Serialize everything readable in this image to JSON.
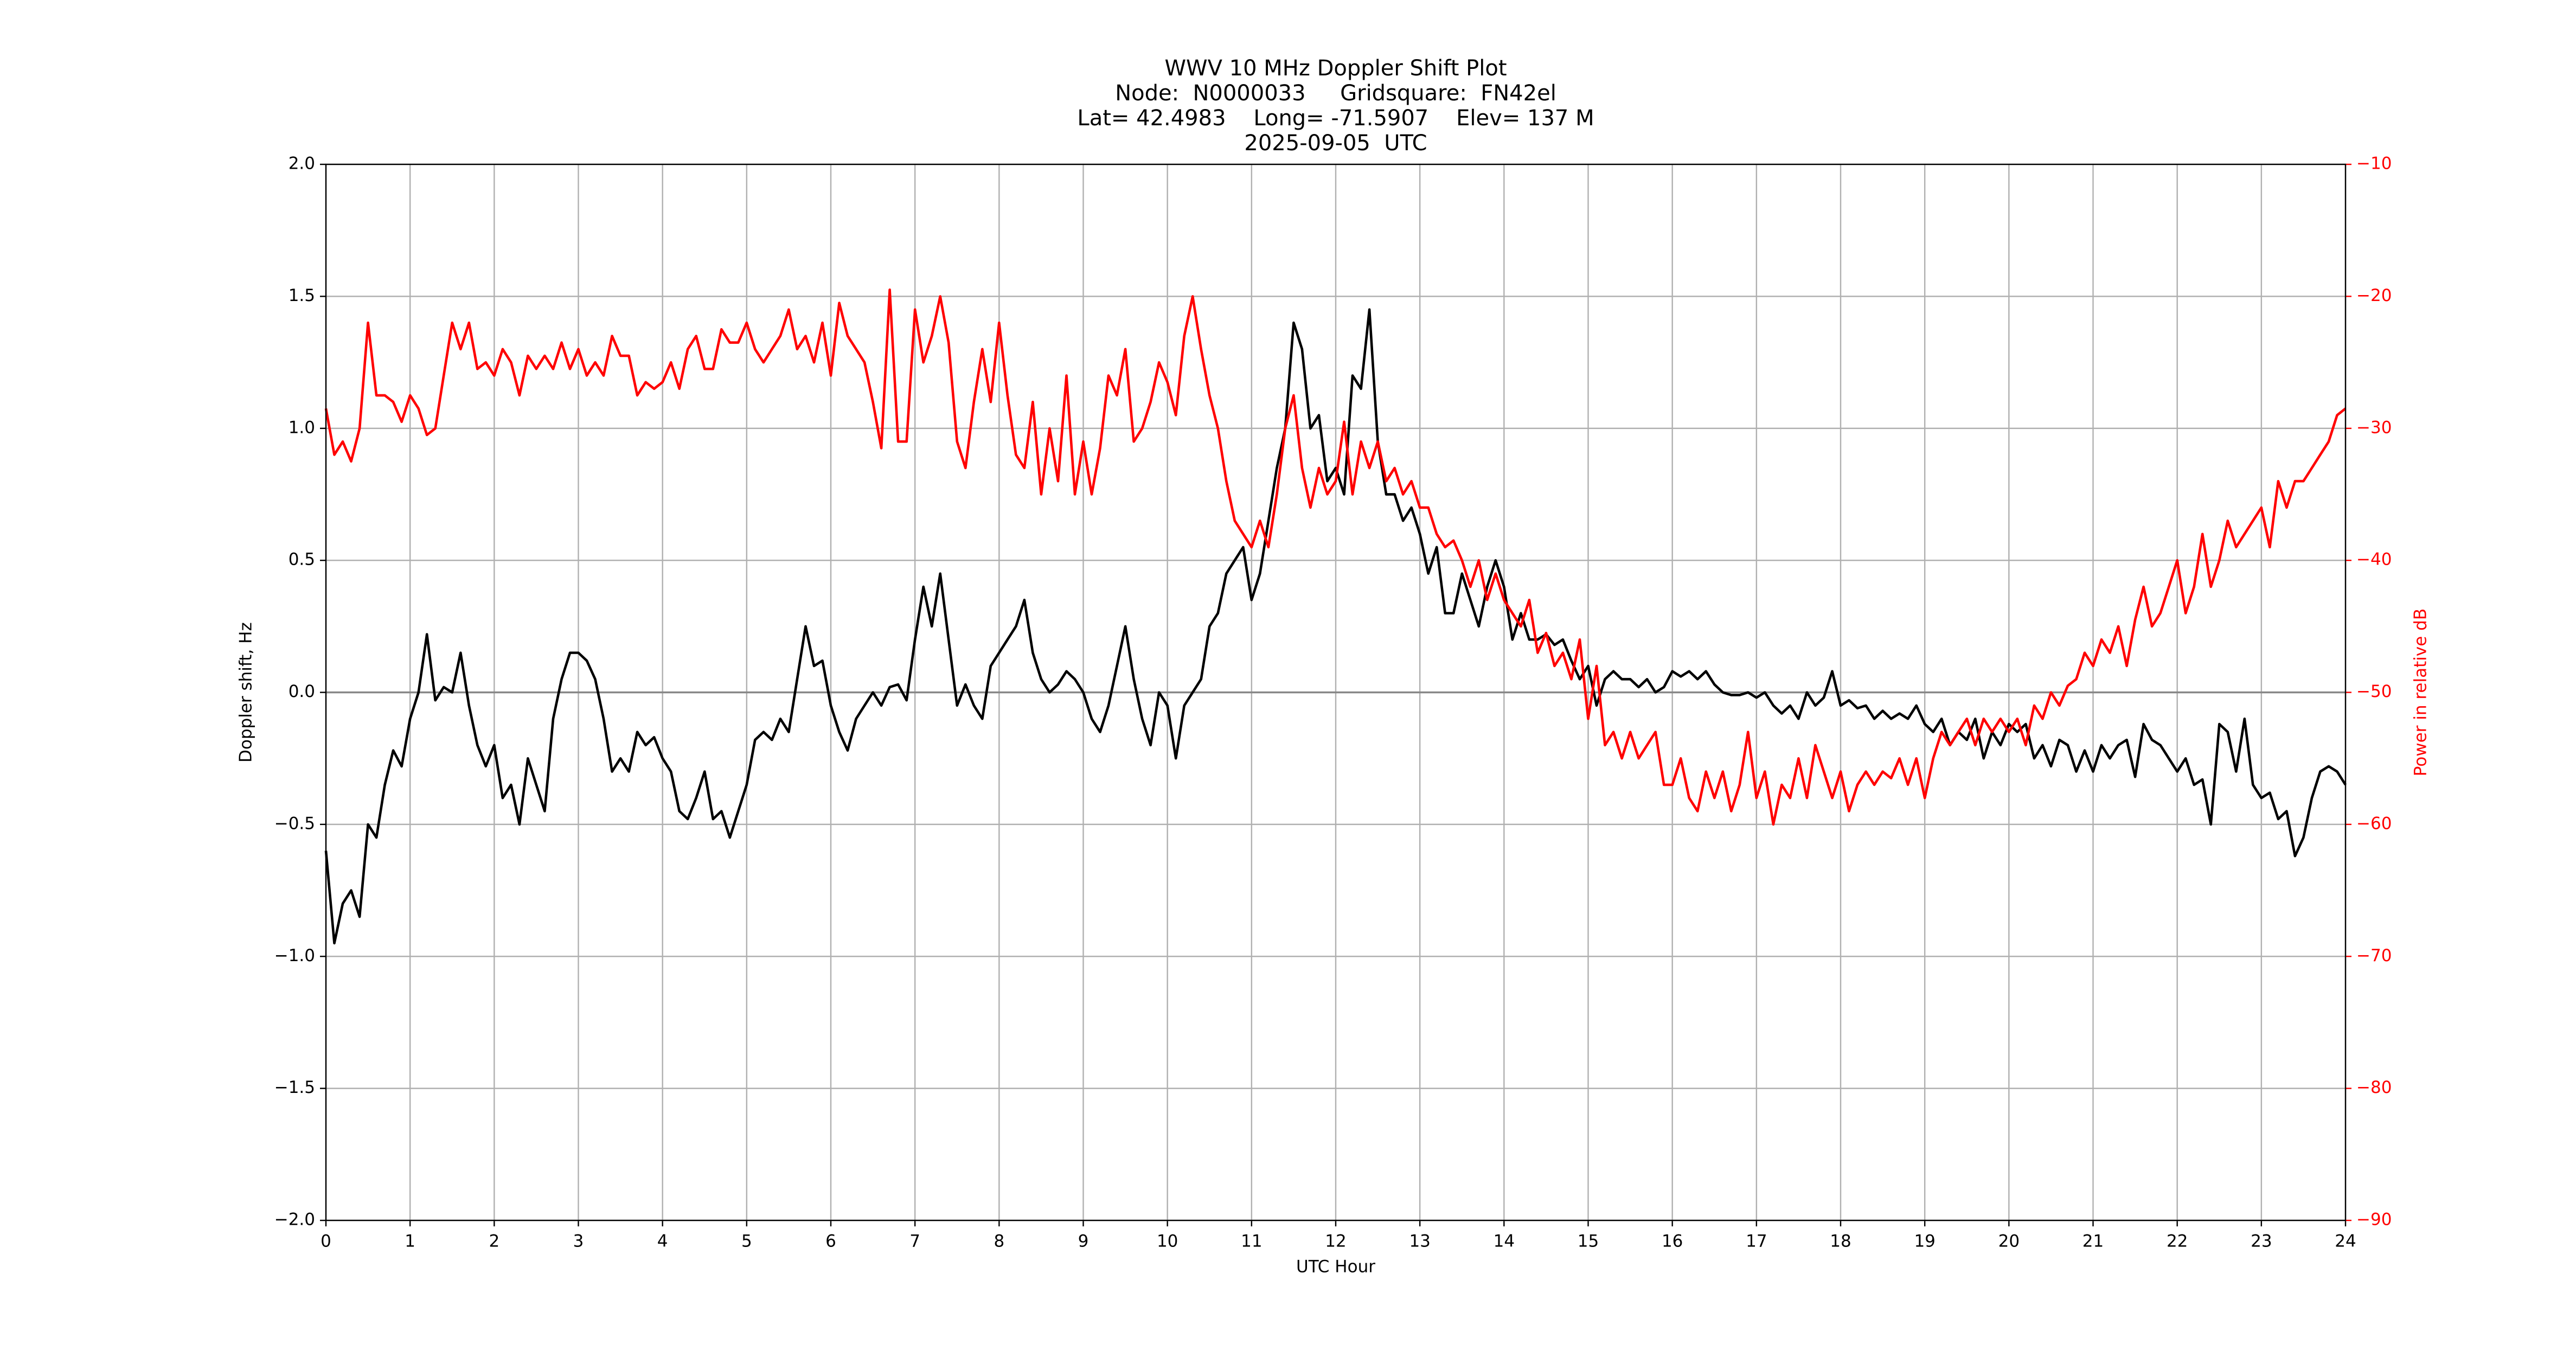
{
  "chart_data": {
    "type": "line",
    "title": [
      "WWV 10 MHz Doppler Shift Plot",
      "Node:  N0000033     Gridsquare:  FN42el",
      "Lat= 42.4983    Long= -71.5907    Elev= 137 M",
      "2025-09-05  UTC"
    ],
    "xlabel": "UTC Hour",
    "ylabel": "Doppler shift, Hz",
    "y2label": "Power in relative dB",
    "x": [
      0,
      0.1,
      0.2,
      0.3,
      0.4,
      0.5,
      0.6,
      0.7,
      0.8,
      0.9,
      1,
      1.1,
      1.2,
      1.3,
      1.4,
      1.5,
      1.6,
      1.7,
      1.8,
      1.9,
      2,
      2.1,
      2.2,
      2.3,
      2.4,
      2.5,
      2.6,
      2.7,
      2.8,
      2.9,
      3,
      3.1,
      3.2,
      3.3,
      3.4,
      3.5,
      3.6,
      3.7,
      3.8,
      3.9,
      4,
      4.1,
      4.2,
      4.3,
      4.4,
      4.5,
      4.6,
      4.7,
      4.8,
      4.9,
      5,
      5.1,
      5.2,
      5.3,
      5.4,
      5.5,
      5.6,
      5.7,
      5.8,
      5.9,
      6,
      6.1,
      6.2,
      6.3,
      6.4,
      6.5,
      6.6,
      6.7,
      6.8,
      6.9,
      7,
      7.1,
      7.2,
      7.3,
      7.4,
      7.5,
      7.6,
      7.7,
      7.8,
      7.9,
      8,
      8.1,
      8.2,
      8.3,
      8.4,
      8.5,
      8.6,
      8.7,
      8.8,
      8.9,
      9,
      9.1,
      9.2,
      9.3,
      9.4,
      9.5,
      9.6,
      9.7,
      9.8,
      9.9,
      10,
      10.1,
      10.2,
      10.3,
      10.4,
      10.5,
      10.6,
      10.7,
      10.8,
      10.9,
      11,
      11.1,
      11.2,
      11.3,
      11.4,
      11.5,
      11.6,
      11.7,
      11.8,
      11.9,
      12,
      12.1,
      12.2,
      12.3,
      12.4,
      12.5,
      12.6,
      12.7,
      12.8,
      12.9,
      13,
      13.1,
      13.2,
      13.3,
      13.4,
      13.5,
      13.6,
      13.7,
      13.8,
      13.9,
      14,
      14.1,
      14.2,
      14.3,
      14.4,
      14.5,
      14.6,
      14.7,
      14.8,
      14.9,
      15,
      15.1,
      15.2,
      15.3,
      15.4,
      15.5,
      15.6,
      15.7,
      15.8,
      15.9,
      16,
      16.1,
      16.2,
      16.3,
      16.4,
      16.5,
      16.6,
      16.7,
      16.8,
      16.9,
      17,
      17.1,
      17.2,
      17.3,
      17.4,
      17.5,
      17.6,
      17.7,
      17.8,
      17.9,
      18,
      18.1,
      18.2,
      18.3,
      18.4,
      18.5,
      18.6,
      18.7,
      18.8,
      18.9,
      19,
      19.1,
      19.2,
      19.3,
      19.4,
      19.5,
      19.6,
      19.7,
      19.8,
      19.9,
      20,
      20.1,
      20.2,
      20.3,
      20.4,
      20.5,
      20.6,
      20.7,
      20.8,
      20.9,
      21,
      21.1,
      21.2,
      21.3,
      21.4,
      21.5,
      21.6,
      21.7,
      21.8,
      21.9,
      22,
      22.1,
      22.2,
      22.3,
      22.4,
      22.5,
      22.6,
      22.7,
      22.8,
      22.9,
      23,
      23.1,
      23.2,
      23.3,
      23.4,
      23.5,
      23.6,
      23.7,
      23.8,
      23.9,
      24
    ],
    "series": [
      {
        "color": "#000000",
        "values": [
          -0.6,
          -0.95,
          -0.8,
          -0.75,
          -0.85,
          -0.5,
          -0.55,
          -0.35,
          -0.22,
          -0.28,
          -0.1,
          0,
          0.22,
          -0.03,
          0.02,
          0,
          0.15,
          -0.05,
          -0.2,
          -0.28,
          -0.2,
          -0.4,
          -0.35,
          -0.5,
          -0.25,
          -0.35,
          -0.45,
          -0.1,
          0.05,
          0.15,
          0.15,
          0.12,
          0.05,
          -0.1,
          -0.3,
          -0.25,
          -0.3,
          -0.15,
          -0.2,
          -0.17,
          -0.25,
          -0.3,
          -0.45,
          -0.48,
          -0.4,
          -0.3,
          -0.48,
          -0.45,
          -0.55,
          -0.45,
          -0.35,
          -0.18,
          -0.15,
          -0.18,
          -0.1,
          -0.15,
          0.05,
          0.25,
          0.1,
          0.12,
          -0.05,
          -0.15,
          -0.22,
          -0.1,
          -0.05,
          0,
          -0.05,
          0.02,
          0.03,
          -0.03,
          0.2,
          0.4,
          0.25,
          0.45,
          0.2,
          -0.05,
          0.03,
          -0.05,
          -0.1,
          0.1,
          0.15,
          0.2,
          0.25,
          0.35,
          0.15,
          0.05,
          0,
          0.03,
          0.08,
          0.05,
          0,
          -0.1,
          -0.15,
          -0.05,
          0.1,
          0.25,
          0.05,
          -0.1,
          -0.2,
          0,
          -0.05,
          -0.25,
          -0.05,
          0,
          0.05,
          0.25,
          0.3,
          0.45,
          0.5,
          0.55,
          0.35,
          0.45,
          0.65,
          0.85,
          1,
          1.4,
          1.3,
          1,
          1.05,
          0.8,
          0.85,
          0.75,
          1.2,
          1.15,
          1.45,
          0.95,
          0.75,
          0.75,
          0.65,
          0.7,
          0.6,
          0.45,
          0.55,
          0.3,
          0.3,
          0.45,
          0.35,
          0.25,
          0.4,
          0.5,
          0.4,
          0.2,
          0.3,
          0.2,
          0.2,
          0.22,
          0.18,
          0.2,
          0.12,
          0.05,
          0.1,
          -0.05,
          0.05,
          0.08,
          0.05,
          0.05,
          0.02,
          0.05,
          0,
          0.02,
          0.08,
          0.06,
          0.08,
          0.05,
          0.08,
          0.03,
          0,
          -0.01,
          -0.01,
          0,
          -0.02,
          0,
          -0.05,
          -0.08,
          -0.05,
          -0.1,
          0,
          -0.05,
          -0.02,
          0.08,
          -0.05,
          -0.03,
          -0.06,
          -0.05,
          -0.1,
          -0.07,
          -0.1,
          -0.08,
          -0.1,
          -0.05,
          -0.12,
          -0.15,
          -0.1,
          -0.2,
          -0.15,
          -0.18,
          -0.1,
          -0.25,
          -0.15,
          -0.2,
          -0.12,
          -0.15,
          -0.12,
          -0.25,
          -0.2,
          -0.28,
          -0.18,
          -0.2,
          -0.3,
          -0.22,
          -0.3,
          -0.2,
          -0.25,
          -0.2,
          -0.18,
          -0.32,
          -0.12,
          -0.18,
          -0.2,
          -0.25,
          -0.3,
          -0.25,
          -0.35,
          -0.33,
          -0.5,
          -0.12,
          -0.15,
          -0.3,
          -0.1,
          -0.35,
          -0.4,
          -0.38,
          -0.48,
          -0.45,
          -0.62,
          -0.55,
          -0.4,
          -0.3,
          -0.28,
          -0.3,
          -0.35
        ]
      },
      {
        "color": "#ff0000",
        "axis": "y2",
        "values": [
          -28.5,
          -32,
          -31,
          -32.5,
          -30,
          -22,
          -27.5,
          -27.5,
          -28,
          -29.5,
          -27.5,
          -28.5,
          -30.5,
          -30,
          -26,
          -22,
          -24,
          -22,
          -25.5,
          -25,
          -26,
          -24,
          -25,
          -27.5,
          -24.5,
          -25.5,
          -24.5,
          -25.5,
          -23.5,
          -25.5,
          -24,
          -26,
          -25,
          -26,
          -23,
          -24.5,
          -24.5,
          -27.5,
          -26.5,
          -27,
          -26.5,
          -25,
          -27,
          -24,
          -23,
          -25.5,
          -25.5,
          -22.5,
          -23.5,
          -23.5,
          -22,
          -24,
          -25,
          -24,
          -23,
          -21,
          -24,
          -23,
          -25,
          -22,
          -26,
          -20.5,
          -23,
          -24,
          -25,
          -28,
          -31.5,
          -19.5,
          -31,
          -31,
          -21,
          -25,
          -23,
          -20,
          -23.5,
          -31,
          -33,
          -28,
          -24,
          -28,
          -22,
          -27.5,
          -32,
          -33,
          -28,
          -35,
          -30,
          -34,
          -26,
          -35,
          -31,
          -35,
          -31.5,
          -26,
          -27.5,
          -24,
          -31,
          -30,
          -28,
          -25,
          -26.5,
          -29,
          -23,
          -20,
          -24,
          -27.5,
          -30,
          -34,
          -37,
          -38,
          -39,
          -37,
          -39,
          -35,
          -30,
          -27.5,
          -33,
          -36,
          -33,
          -35,
          -34,
          -29.5,
          -35,
          -31,
          -33,
          -31,
          -34,
          -33,
          -35,
          -34,
          -36,
          -36,
          -38,
          -39,
          -38.5,
          -40,
          -42,
          -40,
          -43,
          -41,
          -43,
          -44,
          -45,
          -43,
          -47,
          -45.5,
          -48,
          -47,
          -49,
          -46,
          -52,
          -48,
          -54,
          -53,
          -55,
          -53,
          -55,
          -54,
          -53,
          -57,
          -57,
          -55,
          -58,
          -59,
          -56,
          -58,
          -56,
          -59,
          -57,
          -53,
          -58,
          -56,
          -60,
          -57,
          -58,
          -55,
          -58,
          -54,
          -56,
          -58,
          -56,
          -59,
          -57,
          -56,
          -57,
          -56,
          -56.5,
          -55,
          -57,
          -55,
          -58,
          -55,
          -53,
          -54,
          -53,
          -52,
          -54,
          -52,
          -53,
          -52,
          -53,
          -52,
          -54,
          -51,
          -52,
          -50,
          -51,
          -49.5,
          -49,
          -47,
          -48,
          -46,
          -47,
          -45,
          -48,
          -44.5,
          -42,
          -45,
          -44,
          -42,
          -40,
          -44,
          -42,
          -38,
          -42,
          -40,
          -37,
          -39,
          -38,
          -37,
          -36,
          -39,
          -34,
          -36,
          -34,
          -34,
          -33,
          -32,
          -31,
          -29,
          -28.5
        ]
      }
    ],
    "xlim": [
      0,
      24
    ],
    "xticks": [
      0,
      1,
      2,
      3,
      4,
      5,
      6,
      7,
      8,
      9,
      10,
      11,
      12,
      13,
      14,
      15,
      16,
      17,
      18,
      19,
      20,
      21,
      22,
      23,
      24
    ],
    "ylim": [
      -2,
      2
    ],
    "yticks": [
      {
        "value": -2,
        "label": "−2.0"
      },
      {
        "value": -1.5,
        "label": "−1.5"
      },
      {
        "value": -1,
        "label": "−1.0"
      },
      {
        "value": -0.5,
        "label": "−0.5"
      },
      {
        "value": 0,
        "label": "0.0"
      },
      {
        "value": 0.5,
        "label": "0.5"
      },
      {
        "value": 1,
        "label": "1.0"
      },
      {
        "value": 1.5,
        "label": "1.5"
      },
      {
        "value": 2,
        "label": "2.0"
      }
    ],
    "y2lim": [
      -90,
      -10
    ],
    "y2ticks": [
      {
        "value": -90,
        "label": "−90"
      },
      {
        "value": -80,
        "label": "−80"
      },
      {
        "value": -70,
        "label": "−70"
      },
      {
        "value": -60,
        "label": "−60"
      },
      {
        "value": -50,
        "label": "−50"
      },
      {
        "value": -40,
        "label": "−40"
      },
      {
        "value": -30,
        "label": "−30"
      },
      {
        "value": -20,
        "label": "−20"
      },
      {
        "value": -10,
        "label": "−10"
      }
    ],
    "grid": true
  }
}
